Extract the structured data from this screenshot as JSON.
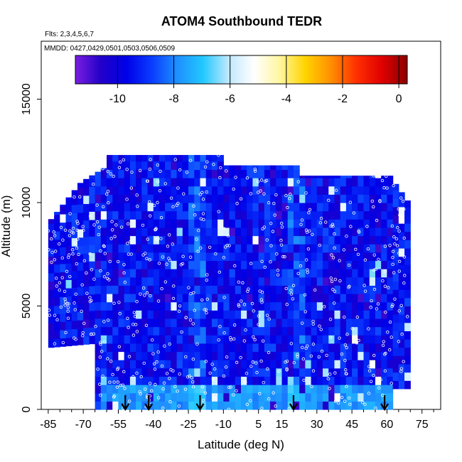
{
  "chart_data": {
    "type": "heatmap",
    "title": "ATOM4 Southbound TEDR",
    "flights_label": "Flts: 2,3,4,5,6,7",
    "mmdd_label": "MMDD: 0427,0429,0501,0503,0506,0509",
    "xlabel": "Latitude (deg N)",
    "ylabel": "Altitude (m)",
    "xlim": [
      -88,
      83
    ],
    "ylim": [
      0,
      17800
    ],
    "x_ticks": [
      -85,
      -70,
      -55,
      -40,
      -25,
      -10,
      5,
      15,
      30,
      45,
      60,
      75
    ],
    "x_tick_labels": [
      "-85",
      "-70",
      "-55",
      "-40",
      "-25",
      "-10",
      "5",
      "15",
      "30",
      "45",
      "60",
      "75"
    ],
    "y_ticks": [
      0,
      5000,
      10000,
      15000
    ],
    "y_tick_labels": [
      "0",
      "5000",
      "10000",
      "15000"
    ],
    "colorbar": {
      "range": [
        -11.5,
        0.3
      ],
      "ticks": [
        -10,
        -8,
        -6,
        -4,
        -2,
        0
      ],
      "tick_labels": [
        "-10",
        "-8",
        "-6",
        "-4",
        "-2",
        "0"
      ],
      "colors": [
        "#7a1fe0",
        "#2200c8",
        "#0000e8",
        "#0a3cff",
        "#1e90ff",
        "#22c8ff",
        "#bfe8ff",
        "#ffffff",
        "#fff6a0",
        "#ffd400",
        "#ff9000",
        "#ff3000",
        "#e00000",
        "#8b0000"
      ]
    },
    "profile_arrows_lat": [
      -52,
      -42,
      -20,
      20,
      59
    ],
    "data_extent": {
      "lat_range": [
        -85,
        70
      ],
      "alt_range": [
        0,
        12300
      ],
      "typical_log10_tedr": -9.5
    }
  }
}
